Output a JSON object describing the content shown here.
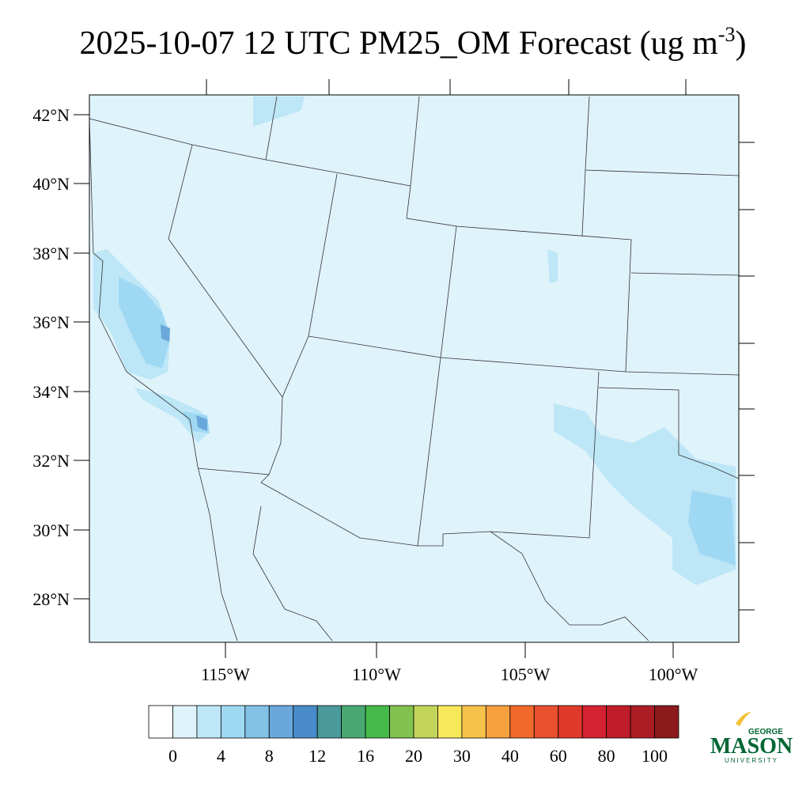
{
  "header": {
    "title_main": "2025-10-07 12 UTC PM25_OM Forecast (ug m",
    "title_sup": "-3",
    "title_end": ")"
  },
  "map": {
    "lat_labels": [
      "42°N",
      "40°N",
      "38°N",
      "36°N",
      "34°N",
      "32°N",
      "30°N",
      "28°N"
    ],
    "lon_labels": [
      "115°W",
      "110°W",
      "105°W",
      "100°W"
    ]
  },
  "colorbar": {
    "colors": [
      "#ffffff",
      "#dff3fb",
      "#bde6f7",
      "#9ed8f3",
      "#84c1e6",
      "#6aa8db",
      "#4a8ccb",
      "#4a9a9b",
      "#4aa872",
      "#45b94a",
      "#82c24e",
      "#c2d55a",
      "#f7e85a",
      "#f7c24a",
      "#f7a040",
      "#f26a2a",
      "#e8502e",
      "#e03a2a",
      "#d42230",
      "#c01c2a",
      "#ac1c24",
      "#8c1a1c"
    ],
    "labels": [
      "0",
      "4",
      "8",
      "12",
      "16",
      "20",
      "30",
      "40",
      "60",
      "80",
      "100"
    ]
  },
  "logo": {
    "top": "GEORGE",
    "main": "MASON",
    "bottom": "UNIVERSITY"
  }
}
